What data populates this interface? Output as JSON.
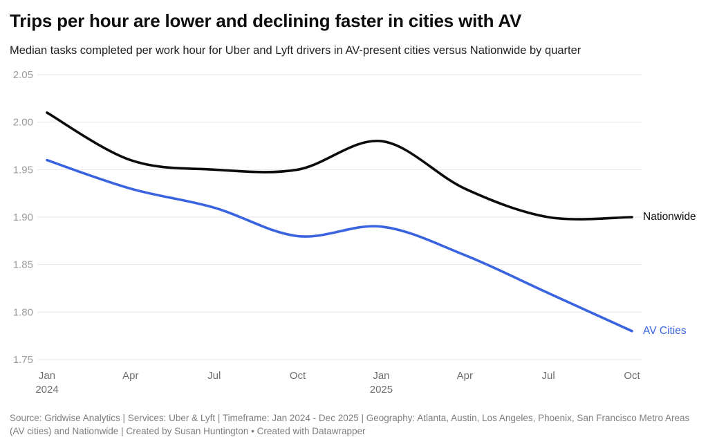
{
  "header": {
    "title": "Trips per hour are lower and declining faster in cities with AV",
    "subtitle": "Median tasks completed per work hour for Uber and Lyft drivers in AV-present cities versus Nationwide by quarter"
  },
  "chart_data": {
    "type": "line",
    "title": "Trips per hour are lower and declining faster in cities with AV",
    "subtitle": "Median tasks completed per work hour for Uber and Lyft drivers in AV-present cities versus Nationwide by quarter",
    "x": [
      "Jan 2024",
      "Apr 2024",
      "Jul 2024",
      "Oct 2024",
      "Jan 2025",
      "Apr 2025",
      "Jul 2025",
      "Oct 2025"
    ],
    "series": [
      {
        "name": "Nationwide",
        "color": "#0c0c0c",
        "values": [
          2.01,
          1.96,
          1.95,
          1.95,
          1.98,
          1.93,
          1.9,
          1.9
        ]
      },
      {
        "name": "AV Cities",
        "color": "#3a63e0",
        "values": [
          1.96,
          1.93,
          1.91,
          1.88,
          1.89,
          1.86,
          1.82,
          1.78
        ]
      }
    ],
    "x_ticks": [
      {
        "label": "Jan",
        "year": "2024"
      },
      {
        "label": "Apr"
      },
      {
        "label": "Jul"
      },
      {
        "label": "Oct"
      },
      {
        "label": "Jan",
        "year": "2025"
      },
      {
        "label": "Apr"
      },
      {
        "label": "Jul"
      },
      {
        "label": "Oct"
      }
    ],
    "y_ticks": [
      "2.05",
      "2.00",
      "1.95",
      "1.90",
      "1.85",
      "1.80",
      "1.75"
    ],
    "ylim": [
      1.75,
      2.05
    ],
    "grid": true,
    "legend_position": "direct-right",
    "grid_color": "#e4e4e4",
    "y_tick_color": "#9b9b9b",
    "x_tick_color": "#6e6e6e"
  },
  "footer": {
    "text": "Source: Gridwise Analytics | Services: Uber & Lyft | Timeframe: Jan 2024 - Dec 2025 | Geography: Atlanta, Austin, Los Angeles, Phoenix, San Francisco Metro Areas (AV cities) and Nationwide | Created by Susan Huntington • Created with Datawrapper"
  }
}
